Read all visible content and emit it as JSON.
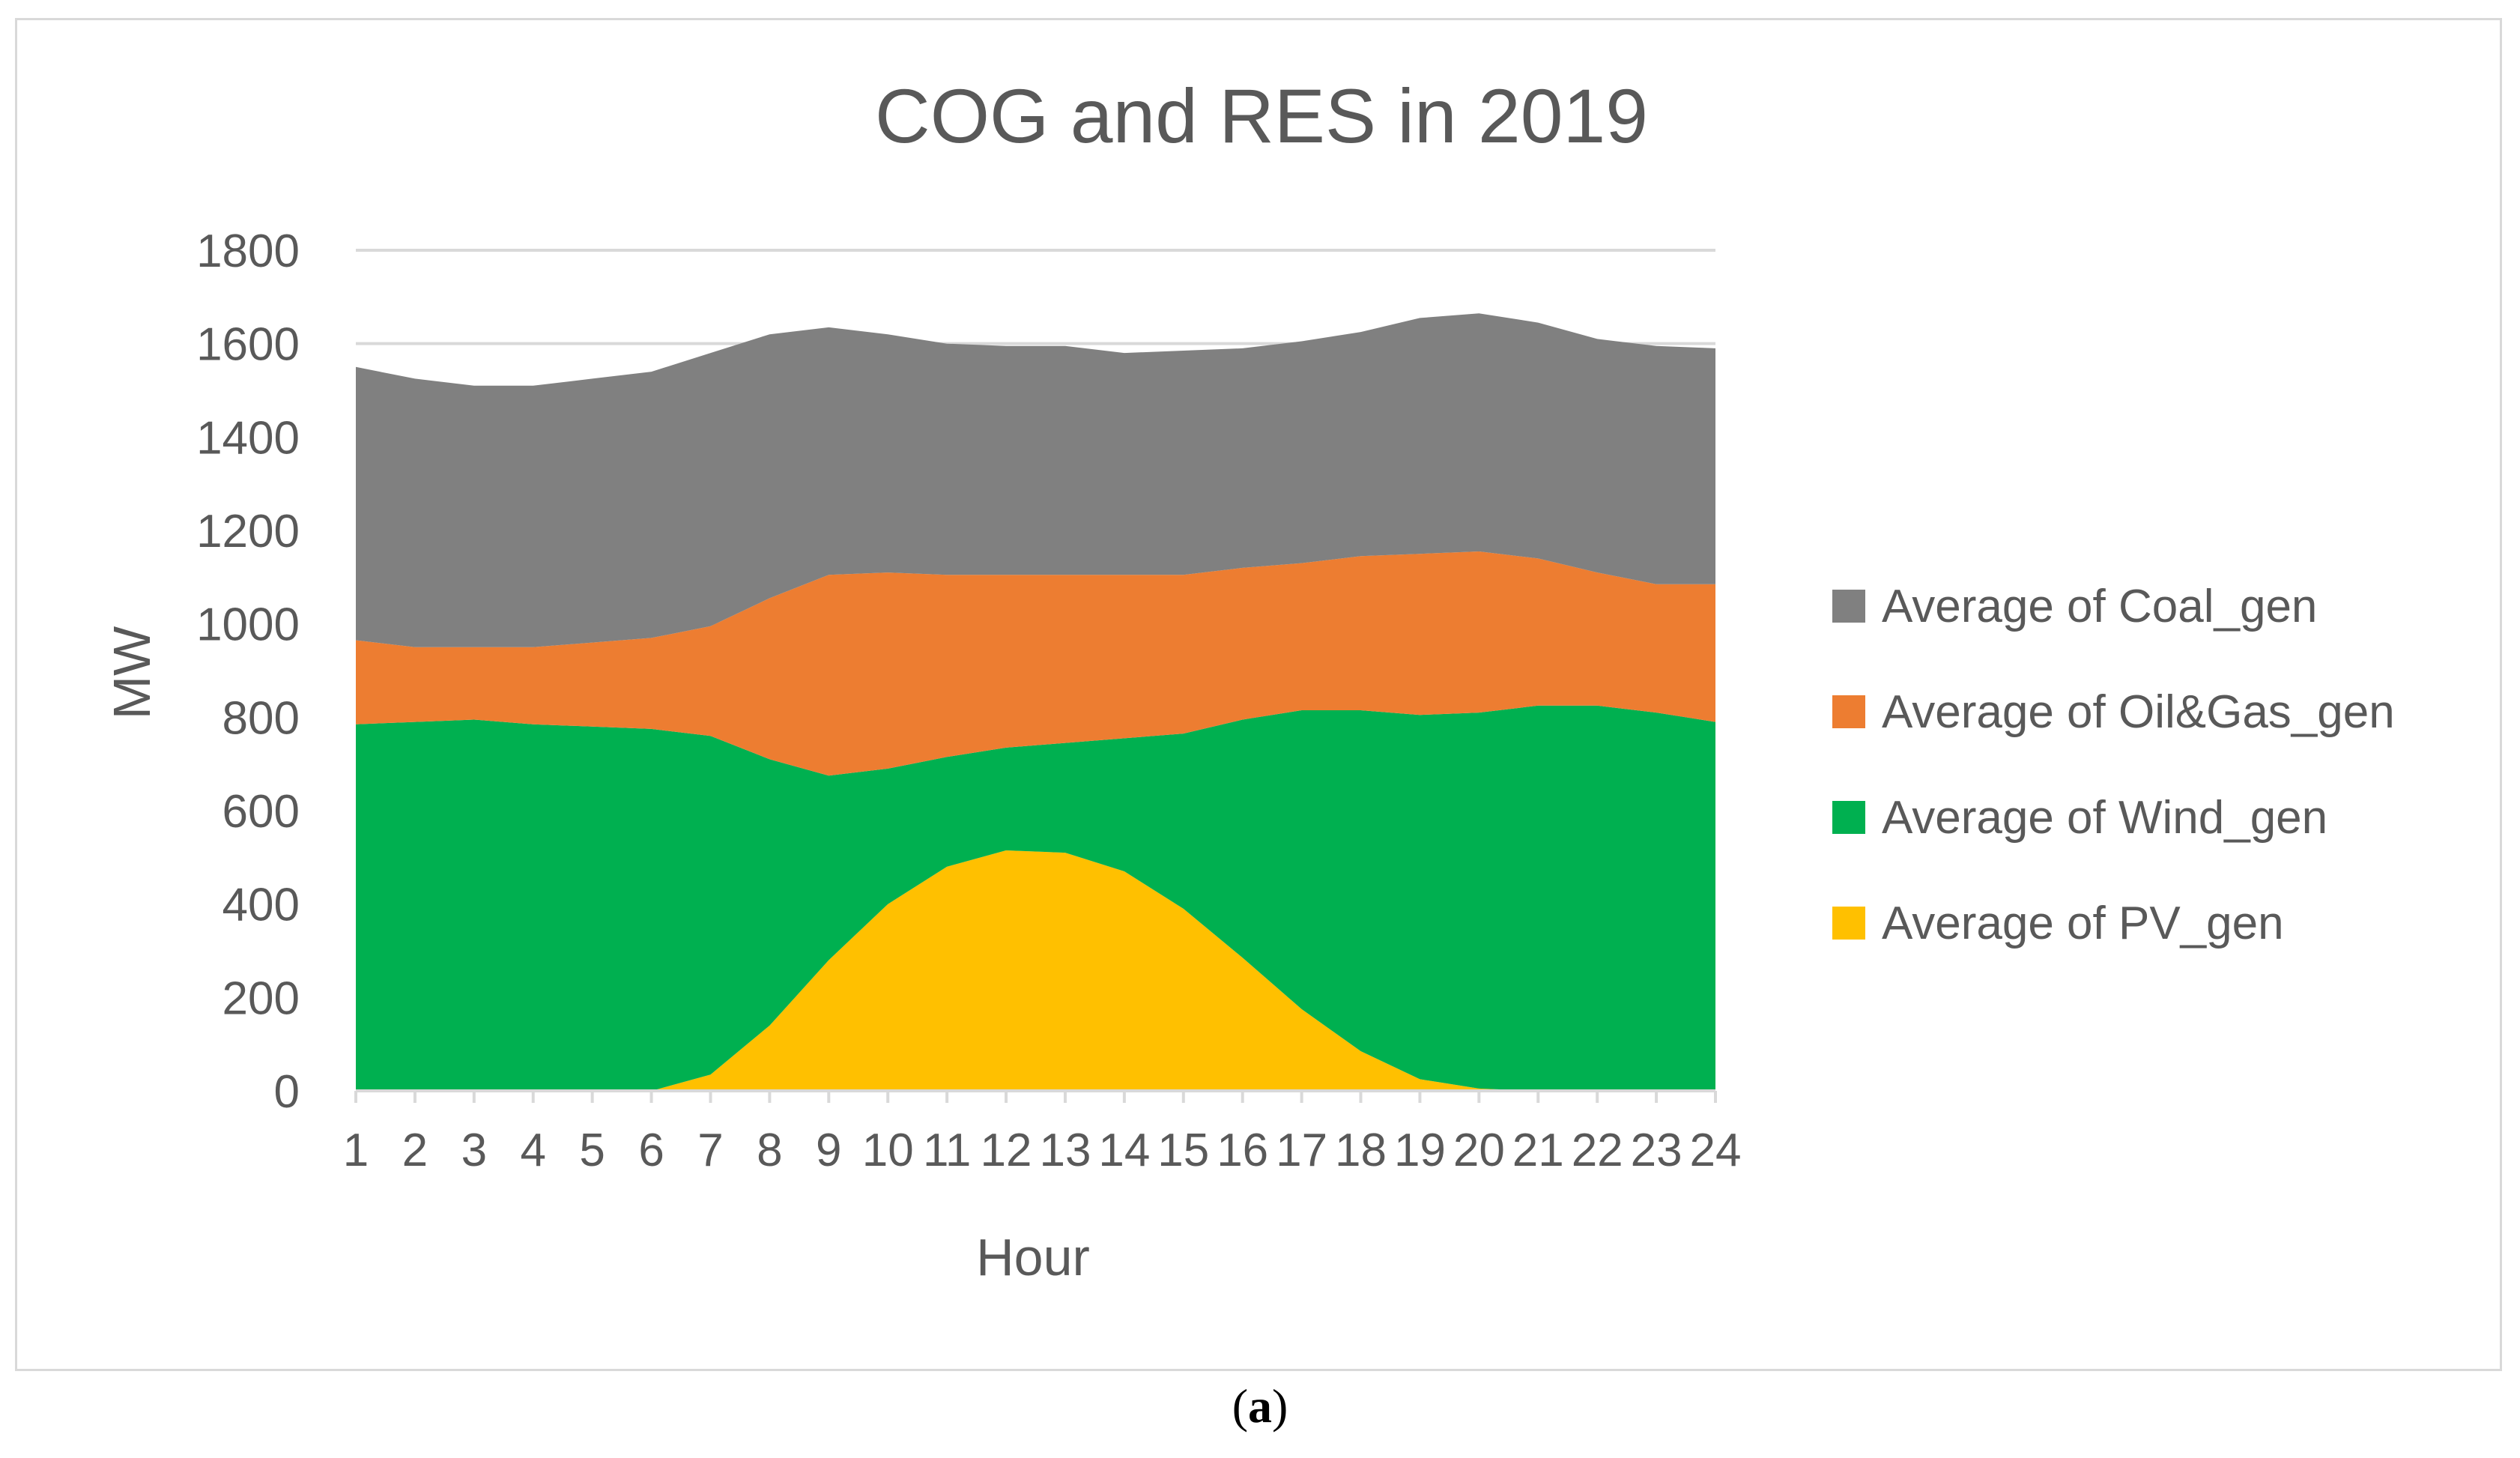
{
  "chart_data": {
    "type": "area",
    "stacked": true,
    "title": "COG and RES in 2019",
    "xlabel": "Hour",
    "ylabel": "MW",
    "ylim": [
      0,
      1800
    ],
    "yticks": [
      0,
      200,
      400,
      600,
      800,
      1000,
      1200,
      1400,
      1600,
      1800
    ],
    "grid": "horizontal",
    "legend_position": "right",
    "categories": [
      "1",
      "2",
      "3",
      "4",
      "5",
      "6",
      "7",
      "8",
      "9",
      "10",
      "11",
      "12",
      "13",
      "14",
      "15",
      "16",
      "17",
      "18",
      "19",
      "20",
      "21",
      "22",
      "23",
      "24"
    ],
    "series": [
      {
        "name": "Average of PV_gen",
        "color": "#FFC000",
        "values": [
          0,
          0,
          0,
          0,
          0,
          0,
          35,
          140,
          280,
          400,
          480,
          515,
          510,
          470,
          390,
          285,
          175,
          85,
          25,
          5,
          0,
          0,
          0,
          0
        ]
      },
      {
        "name": "Average of Wind_gen",
        "color": "#00B050",
        "values": [
          785,
          790,
          795,
          785,
          780,
          775,
          725,
          570,
          395,
          290,
          235,
          220,
          235,
          285,
          375,
          510,
          640,
          730,
          780,
          805,
          825,
          825,
          810,
          790
        ]
      },
      {
        "name": "Average of Oil&Gas_gen",
        "color": "#ED7D31",
        "values": [
          180,
          160,
          155,
          165,
          180,
          195,
          235,
          345,
          430,
          420,
          390,
          370,
          360,
          350,
          340,
          325,
          315,
          330,
          345,
          345,
          315,
          285,
          275,
          295
        ]
      },
      {
        "name": "Average of Coal_gen",
        "color": "#808080",
        "values": [
          585,
          575,
          560,
          560,
          565,
          570,
          585,
          565,
          530,
          510,
          495,
          490,
          490,
          475,
          480,
          470,
          475,
          480,
          505,
          510,
          505,
          500,
          510,
          505
        ]
      }
    ],
    "legend_order": [
      "Average of Coal_gen",
      "Average of Oil&Gas_gen",
      "Average of Wind_gen",
      "Average of PV_gen"
    ]
  },
  "caption": {
    "label": "a",
    "open": "(",
    "close": ")"
  },
  "colors": {
    "grid": "#d9d9d9",
    "axis_text": "#595959",
    "title_text": "#595959"
  }
}
